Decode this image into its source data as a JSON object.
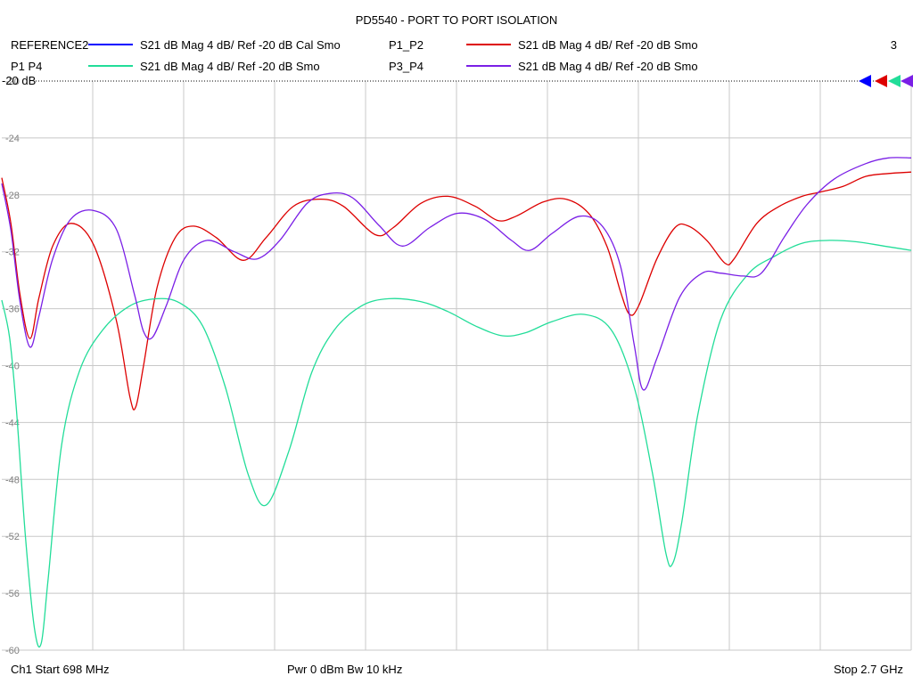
{
  "title": "PD5540 - PORT TO PORT ISOLATION",
  "legend": [
    {
      "name": "REFERENCE2",
      "desc": "S21  dB Mag  4 dB/ Ref -20 dB  Cal Smo",
      "color": "#0000ff"
    },
    {
      "name": "P1_P2",
      "desc": "S21  dB Mag  4 dB/ Ref -20 dB  Smo",
      "color": "#dd0000"
    },
    {
      "name": "P1  P4",
      "desc": "S21  dB Mag  4 dB/ Ref -20 dB  Smo",
      "color": "#22dd99"
    },
    {
      "name": "P3_P4",
      "desc": "S21  dB Mag  4 dB/ Ref -20 dB  Smo",
      "color": "#7a1fe6"
    }
  ],
  "marker_count": "3",
  "ref_label": "-20 dB",
  "footer": {
    "start": "Ch1  Start  698 MHz",
    "power": "Pwr  0 dBm  Bw  10 kHz",
    "stop": "Stop  2.7 GHz"
  },
  "chart_data": {
    "type": "line",
    "xlabel": "",
    "ylabel": "",
    "x_unit": "MHz",
    "xlim": [
      698,
      2700
    ],
    "ylim": [
      -60,
      -20
    ],
    "y_ticks": [
      "-20",
      "-24",
      "-28",
      "-32",
      "-36",
      "-40",
      "-44",
      "-48",
      "-52",
      "-56",
      "-60"
    ],
    "x_divisions": 10,
    "grid": true,
    "series": [
      {
        "name": "P1_P2",
        "color": "#dd0000",
        "points": [
          [
            698,
            -26.8
          ],
          [
            718,
            -30
          ],
          [
            738,
            -35
          ],
          [
            760,
            -38.1
          ],
          [
            780,
            -35.2
          ],
          [
            810,
            -31.6
          ],
          [
            850,
            -30.0
          ],
          [
            900,
            -31.5
          ],
          [
            950,
            -36.8
          ],
          [
            980,
            -42.2
          ],
          [
            993,
            -42.9
          ],
          [
            1010,
            -40
          ],
          [
            1040,
            -34.5
          ],
          [
            1080,
            -31.0
          ],
          [
            1120,
            -30.2
          ],
          [
            1170,
            -31
          ],
          [
            1230,
            -32.6
          ],
          [
            1280,
            -31
          ],
          [
            1340,
            -28.8
          ],
          [
            1400,
            -28.3
          ],
          [
            1450,
            -28.8
          ],
          [
            1520,
            -30.8
          ],
          [
            1560,
            -30.3
          ],
          [
            1620,
            -28.6
          ],
          [
            1680,
            -28.1
          ],
          [
            1740,
            -28.8
          ],
          [
            1790,
            -29.8
          ],
          [
            1830,
            -29.5
          ],
          [
            1890,
            -28.5
          ],
          [
            1940,
            -28.3
          ],
          [
            1990,
            -29.3
          ],
          [
            2030,
            -31.6
          ],
          [
            2060,
            -34.8
          ],
          [
            2080,
            -36.4
          ],
          [
            2100,
            -35.8
          ],
          [
            2140,
            -32.5
          ],
          [
            2180,
            -30.3
          ],
          [
            2210,
            -30.2
          ],
          [
            2250,
            -31.2
          ],
          [
            2290,
            -32.8
          ],
          [
            2310,
            -32.5
          ],
          [
            2360,
            -30.0
          ],
          [
            2410,
            -28.8
          ],
          [
            2460,
            -28.1
          ],
          [
            2500,
            -27.8
          ],
          [
            2550,
            -27.4
          ],
          [
            2600,
            -26.7
          ],
          [
            2650,
            -26.5
          ],
          [
            2700,
            -26.4
          ]
        ]
      },
      {
        "name": "P1  P4",
        "color": "#22dd99",
        "points": [
          [
            698,
            -35.4
          ],
          [
            715,
            -38
          ],
          [
            730,
            -43
          ],
          [
            750,
            -52
          ],
          [
            770,
            -58.5
          ],
          [
            785,
            -59.5
          ],
          [
            800,
            -55
          ],
          [
            830,
            -45.5
          ],
          [
            870,
            -40.3
          ],
          [
            920,
            -37.5
          ],
          [
            980,
            -35.8
          ],
          [
            1040,
            -35.3
          ],
          [
            1090,
            -35.6
          ],
          [
            1140,
            -37.2
          ],
          [
            1190,
            -41.5
          ],
          [
            1240,
            -47.6
          ],
          [
            1280,
            -49.8
          ],
          [
            1330,
            -46
          ],
          [
            1380,
            -40.5
          ],
          [
            1430,
            -37.5
          ],
          [
            1490,
            -35.8
          ],
          [
            1550,
            -35.3
          ],
          [
            1620,
            -35.5
          ],
          [
            1680,
            -36.2
          ],
          [
            1740,
            -37.2
          ],
          [
            1800,
            -37.9
          ],
          [
            1850,
            -37.7
          ],
          [
            1910,
            -36.9
          ],
          [
            1980,
            -36.4
          ],
          [
            2040,
            -37.5
          ],
          [
            2090,
            -41.5
          ],
          [
            2130,
            -47.5
          ],
          [
            2160,
            -53.2
          ],
          [
            2175,
            -53.9
          ],
          [
            2195,
            -51
          ],
          [
            2230,
            -43.5
          ],
          [
            2280,
            -36.8
          ],
          [
            2340,
            -33.6
          ],
          [
            2400,
            -32.3
          ],
          [
            2460,
            -31.4
          ],
          [
            2520,
            -31.2
          ],
          [
            2580,
            -31.3
          ],
          [
            2640,
            -31.6
          ],
          [
            2700,
            -31.9
          ]
        ]
      },
      {
        "name": "P3_P4",
        "color": "#7a1fe6",
        "points": [
          [
            698,
            -27.2
          ],
          [
            718,
            -30.5
          ],
          [
            738,
            -35.5
          ],
          [
            760,
            -38.7
          ],
          [
            780,
            -36.5
          ],
          [
            810,
            -32.5
          ],
          [
            850,
            -29.7
          ],
          [
            900,
            -29.1
          ],
          [
            950,
            -30.4
          ],
          [
            990,
            -35.0
          ],
          [
            1010,
            -37.6
          ],
          [
            1030,
            -38.0
          ],
          [
            1060,
            -35.8
          ],
          [
            1100,
            -32.5
          ],
          [
            1150,
            -31.2
          ],
          [
            1210,
            -32.0
          ],
          [
            1260,
            -32.5
          ],
          [
            1310,
            -31.2
          ],
          [
            1370,
            -28.6
          ],
          [
            1420,
            -27.9
          ],
          [
            1470,
            -28.2
          ],
          [
            1530,
            -30.2
          ],
          [
            1580,
            -31.6
          ],
          [
            1640,
            -30.3
          ],
          [
            1700,
            -29.3
          ],
          [
            1760,
            -29.7
          ],
          [
            1820,
            -31.2
          ],
          [
            1860,
            -31.9
          ],
          [
            1910,
            -30.7
          ],
          [
            1970,
            -29.5
          ],
          [
            2020,
            -30.2
          ],
          [
            2060,
            -33.0
          ],
          [
            2090,
            -38.5
          ],
          [
            2110,
            -41.7
          ],
          [
            2140,
            -39.5
          ],
          [
            2190,
            -35.2
          ],
          [
            2240,
            -33.5
          ],
          [
            2280,
            -33.5
          ],
          [
            2330,
            -33.7
          ],
          [
            2370,
            -33.5
          ],
          [
            2420,
            -31.0
          ],
          [
            2470,
            -28.7
          ],
          [
            2530,
            -26.9
          ],
          [
            2600,
            -25.8
          ],
          [
            2650,
            -25.4
          ],
          [
            2700,
            -25.4
          ]
        ]
      }
    ]
  }
}
